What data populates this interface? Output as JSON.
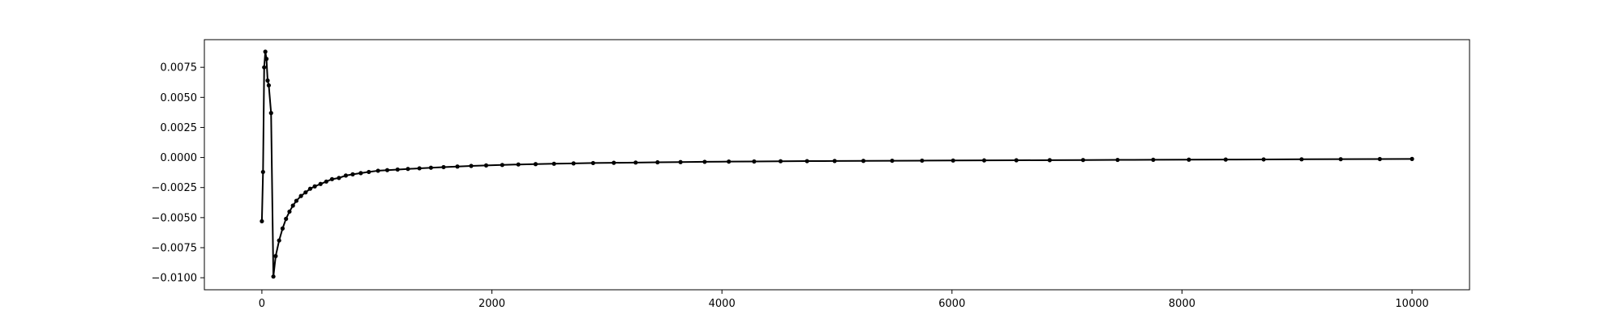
{
  "chart_data": {
    "type": "line",
    "title": "",
    "xlabel": "",
    "ylabel": "",
    "xlim": [
      -500,
      10500
    ],
    "ylim": [
      -0.011,
      0.0098
    ],
    "xticks": [
      0,
      2000,
      4000,
      6000,
      8000,
      10000
    ],
    "xtick_labels": [
      "0",
      "2000",
      "4000",
      "6000",
      "8000",
      "10000"
    ],
    "yticks": [
      -0.01,
      -0.0075,
      -0.005,
      -0.0025,
      0.0,
      0.0025,
      0.005,
      0.0075
    ],
    "ytick_labels": [
      "−0.0100",
      "−0.0075",
      "−0.0050",
      "−0.0025",
      "0.0000",
      "0.0025",
      "0.0050",
      "0.0075"
    ],
    "grid": false,
    "legend": "none",
    "line_color": "#000000",
    "marker": "circle",
    "series": [
      {
        "x": [
          0,
          10,
          20,
          30,
          40,
          50,
          60,
          80,
          100,
          120,
          150,
          180,
          210,
          240,
          270,
          300,
          340,
          380,
          420,
          460,
          510,
          560,
          610,
          670,
          730,
          790,
          860,
          930,
          1010,
          1090,
          1180,
          1270,
          1370,
          1470,
          1580,
          1700,
          1820,
          1950,
          2090,
          2230,
          2380,
          2540,
          2710,
          2880,
          3060,
          3250,
          3440,
          3640,
          3850,
          4060,
          4280,
          4510,
          4740,
          4980,
          5230,
          5480,
          5740,
          6010,
          6280,
          6560,
          6850,
          7140,
          7440,
          7750,
          8060,
          8380,
          8710,
          9040,
          9380,
          9720,
          10000
        ],
        "y": [
          -0.0053,
          -0.0012,
          0.0075,
          0.0088,
          0.0082,
          0.0064,
          0.006,
          0.0037,
          -0.0099,
          -0.0082,
          -0.0069,
          -0.0059,
          -0.0051,
          -0.0045,
          -0.004,
          -0.0036,
          -0.0032,
          -0.0029,
          -0.0026,
          -0.0024,
          -0.0022,
          -0.002,
          -0.0018,
          -0.0017,
          -0.0015,
          -0.0014,
          -0.0013,
          -0.0012,
          -0.0011,
          -0.00105,
          -0.001,
          -0.00095,
          -0.0009,
          -0.00085,
          -0.0008,
          -0.00075,
          -0.0007,
          -0.00066,
          -0.00062,
          -0.00058,
          -0.00055,
          -0.00052,
          -0.00049,
          -0.00046,
          -0.00044,
          -0.00042,
          -0.0004,
          -0.00038,
          -0.00036,
          -0.00034,
          -0.00033,
          -0.00031,
          -0.0003,
          -0.00029,
          -0.00028,
          -0.00027,
          -0.00026,
          -0.00025,
          -0.00024,
          -0.00023,
          -0.00022,
          -0.00021,
          -0.0002,
          -0.00019,
          -0.00018,
          -0.00017,
          -0.00016,
          -0.00015,
          -0.00014,
          -0.00013,
          -0.00012
        ]
      }
    ]
  }
}
